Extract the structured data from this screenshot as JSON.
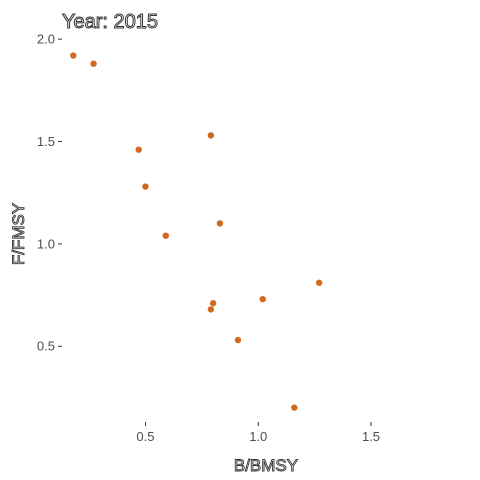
{
  "chart_data": {
    "type": "scatter",
    "title": "Year: 2015",
    "xlabel": "B/BMSY",
    "ylabel": "F/FMSY",
    "xlim": [
      0.13,
      1.93
    ],
    "ylim": [
      0.13,
      2.03
    ],
    "xticks": [
      0.5,
      1.0,
      1.5
    ],
    "xtick_labels": [
      "0.5",
      "1.0",
      "1.5"
    ],
    "yticks": [
      0.5,
      1.0,
      1.5,
      2.0
    ],
    "ytick_labels": [
      "0.5",
      "1.0",
      "1.5",
      "2.0"
    ],
    "grid": false,
    "point_color": "#D2691E",
    "points": [
      {
        "x": 0.18,
        "y": 1.92
      },
      {
        "x": 0.27,
        "y": 1.88
      },
      {
        "x": 0.47,
        "y": 1.46
      },
      {
        "x": 0.5,
        "y": 1.28
      },
      {
        "x": 0.59,
        "y": 1.04
      },
      {
        "x": 0.79,
        "y": 1.53
      },
      {
        "x": 0.83,
        "y": 1.1
      },
      {
        "x": 0.8,
        "y": 0.71
      },
      {
        "x": 0.79,
        "y": 0.68
      },
      {
        "x": 0.91,
        "y": 0.53
      },
      {
        "x": 1.02,
        "y": 0.73
      },
      {
        "x": 1.27,
        "y": 0.81
      },
      {
        "x": 1.16,
        "y": 0.2
      }
    ]
  }
}
